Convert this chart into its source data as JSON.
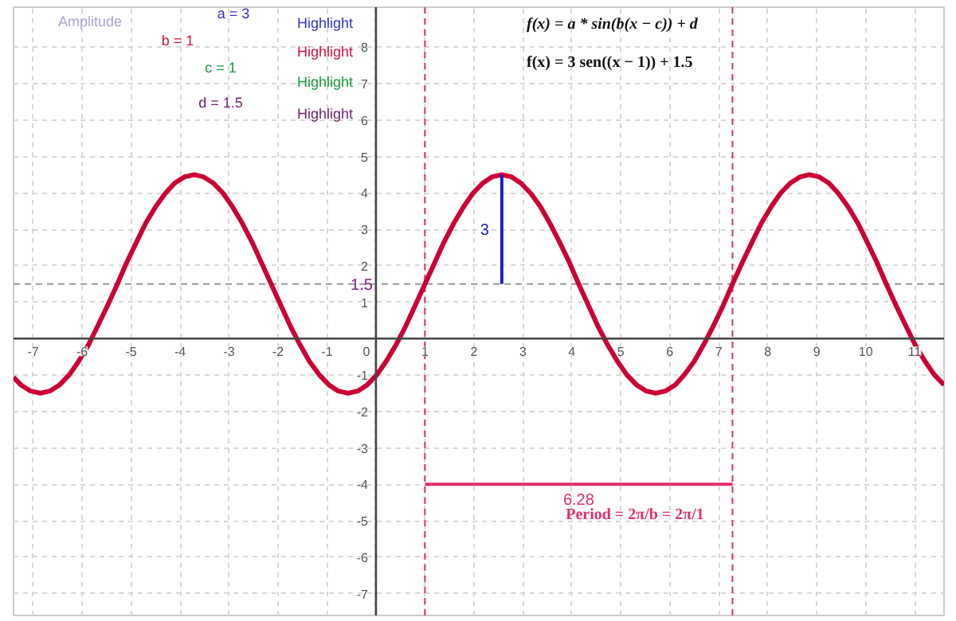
{
  "chart_data": {
    "type": "line",
    "xlim": [
      -7.4,
      11.6
    ],
    "ylim": [
      -7.6,
      9.1
    ],
    "xticks": [
      -7,
      -6,
      -5,
      -4,
      -3,
      -2,
      -1,
      0,
      1,
      2,
      3,
      4,
      5,
      6,
      7,
      8,
      9,
      10,
      11
    ],
    "yticks": [
      -7,
      -6,
      -5,
      -4,
      -3,
      -2,
      -1,
      1,
      2,
      3,
      4,
      5,
      6,
      7,
      8
    ],
    "grid": true,
    "line_style": "solid",
    "marker": "none",
    "series": [
      {
        "color": "#cc0033",
        "x": [
          -7.4,
          -7.25,
          -7.05,
          -6.85,
          -6.66,
          -6.46,
          -6.26,
          -6.07,
          -5.87,
          -5.68,
          -5.48,
          -5.28,
          -5.09,
          -4.89,
          -4.7,
          -4.5,
          -4.3,
          -4.11,
          -3.91,
          -3.71,
          -3.52,
          -3.32,
          -3.12,
          -2.93,
          -2.73,
          -2.53,
          -2.34,
          -2.14,
          -1.94,
          -1.75,
          -1.55,
          -1.36,
          -1.16,
          -0.96,
          -0.77,
          -0.57,
          -0.37,
          -0.18,
          0.02,
          0.21,
          0.41,
          0.61,
          0.8,
          1.0,
          1.2,
          1.39,
          1.59,
          1.79,
          1.98,
          2.18,
          2.37,
          2.57,
          2.77,
          2.96,
          3.16,
          3.36,
          3.55,
          3.75,
          3.95,
          4.14,
          4.34,
          4.53,
          4.73,
          4.93,
          5.12,
          5.32,
          5.52,
          5.71,
          5.91,
          6.11,
          6.3,
          6.5,
          6.69,
          6.89,
          7.09,
          7.28,
          7.48,
          7.68,
          7.87,
          8.07,
          8.26,
          8.46,
          8.66,
          8.85,
          9.05,
          9.25,
          9.44,
          9.64,
          9.84,
          10.03,
          10.23,
          10.42,
          10.62,
          10.82,
          11.01,
          11.21,
          11.4,
          11.6
        ],
        "values": [
          -1.06,
          -1.27,
          -1.44,
          -1.5,
          -1.44,
          -1.27,
          -0.99,
          -0.62,
          -0.17,
          0.35,
          0.91,
          1.5,
          2.09,
          2.65,
          3.17,
          3.62,
          3.99,
          4.27,
          4.44,
          4.5,
          4.44,
          4.27,
          3.99,
          3.62,
          3.17,
          2.65,
          2.09,
          1.5,
          0.91,
          0.35,
          -0.17,
          -0.62,
          -0.99,
          -1.27,
          -1.44,
          -1.5,
          -1.44,
          -1.27,
          -0.99,
          -0.62,
          -0.17,
          0.35,
          0.91,
          1.5,
          2.09,
          2.65,
          3.17,
          3.62,
          3.99,
          4.27,
          4.44,
          4.5,
          4.44,
          4.27,
          3.99,
          3.62,
          3.17,
          2.65,
          2.09,
          1.5,
          0.91,
          0.35,
          -0.17,
          -0.62,
          -0.99,
          -1.27,
          -1.44,
          -1.5,
          -1.44,
          -1.27,
          -0.99,
          -0.62,
          -0.17,
          0.35,
          0.91,
          1.5,
          2.09,
          2.65,
          3.17,
          3.62,
          3.99,
          4.27,
          4.44,
          4.5,
          4.44,
          4.27,
          3.99,
          3.62,
          3.17,
          2.65,
          2.09,
          1.5,
          0.91,
          0.35,
          -0.17,
          -0.62,
          -0.99,
          -1.27
        ]
      },
      {
        "color": "#1f1fcc",
        "x": [
          2.57,
          2.57
        ],
        "values": [
          1.5,
          4.5
        ]
      },
      {
        "color": "#e0306a",
        "x": [
          1,
          7.28
        ],
        "values": [
          -4,
          -4
        ]
      }
    ],
    "ref_lines": [
      {
        "axis": "x",
        "value": 1,
        "color": "#e0306a",
        "line_style": "dashed"
      },
      {
        "axis": "x",
        "value": 7.28,
        "color": "#e0306a",
        "line_style": "dashed"
      },
      {
        "axis": "y",
        "value": 1.5,
        "label": "1.5",
        "color": "#999999",
        "line_style": "dashed"
      }
    ],
    "annotations": [
      "Amplitude",
      "a = 3",
      "b = 1",
      "c = 1",
      "d = 1.5",
      "Highlight",
      "Highlight",
      "Highlight",
      "Highlight",
      "f(x) = a * sin(b(x − c)) + d",
      "f(x) = 3 sen((x − 1)) + 1.5",
      "Period = 2π/b = 2π/1",
      {
        "text": "3",
        "x": 2.57,
        "y": 3
      },
      {
        "text": "6.28",
        "x": 4.14,
        "y": -4
      }
    ]
  }
}
